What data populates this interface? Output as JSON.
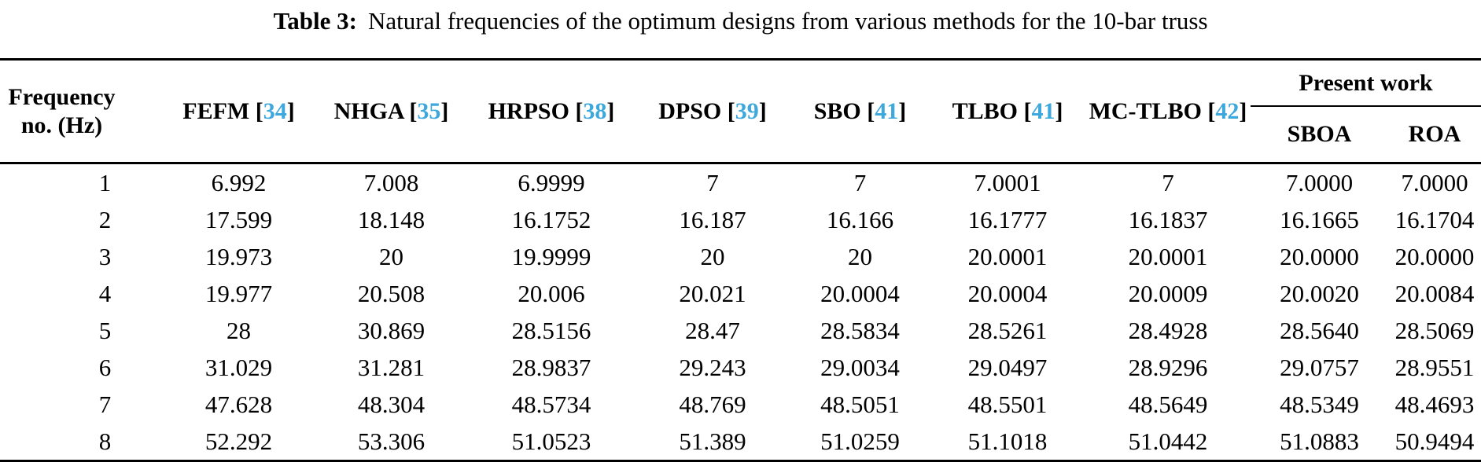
{
  "caption": {
    "label": "Table 3:",
    "text": "Natural frequencies of the optimum designs from various methods for the 10-bar truss"
  },
  "colors": {
    "citation_link": "#3EA8DC",
    "text": "#000000",
    "rule": "#000000"
  },
  "table": {
    "freq_header": "Frequency no. (Hz)",
    "cite_open": "[",
    "cite_close": "]",
    "methods": [
      {
        "name": "FEFM",
        "num": "34"
      },
      {
        "name": "NHGA",
        "num": "35"
      },
      {
        "name": "HRPSO",
        "num": "38"
      },
      {
        "name": "DPSO",
        "num": "39"
      },
      {
        "name": "SBO",
        "num": "41"
      },
      {
        "name": "TLBO",
        "num": "41"
      },
      {
        "name": "MC-TLBO",
        "num": "42"
      }
    ],
    "present_work": {
      "label": "Present work",
      "sub": [
        "SBOA",
        "ROA"
      ]
    },
    "rows": [
      {
        "no": "1",
        "values": [
          "6.992",
          "7.008",
          "6.9999",
          "7",
          "7",
          "7.0001",
          "7",
          "7.0000",
          "7.0000"
        ]
      },
      {
        "no": "2",
        "values": [
          "17.599",
          "18.148",
          "16.1752",
          "16.187",
          "16.166",
          "16.1777",
          "16.1837",
          "16.1665",
          "16.1704"
        ]
      },
      {
        "no": "3",
        "values": [
          "19.973",
          "20",
          "19.9999",
          "20",
          "20",
          "20.0001",
          "20.0001",
          "20.0000",
          "20.0000"
        ]
      },
      {
        "no": "4",
        "values": [
          "19.977",
          "20.508",
          "20.006",
          "20.021",
          "20.0004",
          "20.0004",
          "20.0009",
          "20.0020",
          "20.0084"
        ]
      },
      {
        "no": "5",
        "values": [
          "28",
          "30.869",
          "28.5156",
          "28.47",
          "28.5834",
          "28.5261",
          "28.4928",
          "28.5640",
          "28.5069"
        ]
      },
      {
        "no": "6",
        "values": [
          "31.029",
          "31.281",
          "28.9837",
          "29.243",
          "29.0034",
          "29.0497",
          "28.9296",
          "29.0757",
          "28.9551"
        ]
      },
      {
        "no": "7",
        "values": [
          "47.628",
          "48.304",
          "48.5734",
          "48.769",
          "48.5051",
          "48.5501",
          "48.5649",
          "48.5349",
          "48.4693"
        ]
      },
      {
        "no": "8",
        "values": [
          "52.292",
          "53.306",
          "51.0523",
          "51.389",
          "51.0259",
          "51.1018",
          "51.0442",
          "51.0883",
          "50.9494"
        ]
      }
    ]
  }
}
